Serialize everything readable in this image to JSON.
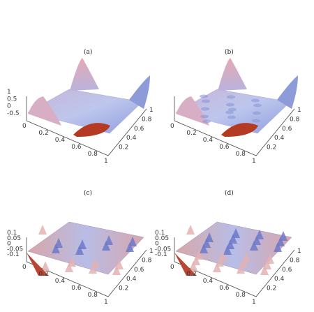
{
  "chart_data": [
    {
      "type": "surface",
      "panel_label": "(a)",
      "x_ticks": [
        "0",
        "0.2",
        "0.4",
        "0.6",
        "0.8",
        "1"
      ],
      "y_ticks": [
        "0",
        "0.2",
        "0.4",
        "0.6",
        "0.8",
        "1"
      ],
      "z_ticks": [
        "-0.5",
        "0",
        "0.5",
        "1"
      ],
      "xlim": [
        0,
        1
      ],
      "ylim": [
        0,
        1
      ],
      "zlim": [
        -0.5,
        1
      ],
      "surface": "smooth surface with tall peaks at the four corners rising to about 1, a broad flat central plateau near 0, and a dip to about -0.5 near the front edge"
    },
    {
      "type": "surface",
      "panel_label": "(b)",
      "x_ticks": [
        "0",
        "0.2",
        "0.4",
        "0.6",
        "0.8",
        "1"
      ],
      "y_ticks": [
        "0",
        "0.2",
        "0.4",
        "0.6",
        "0.8",
        "1"
      ],
      "z_ticks": [],
      "xlim": [
        0,
        1
      ],
      "ylim": [
        0,
        1
      ],
      "zlim": [
        -0.5,
        1
      ],
      "surface": "same corner-peak shape as (a) with small ripples superimposed on the central plateau"
    },
    {
      "type": "surface",
      "panel_label": "(c)",
      "x_ticks": [
        "0",
        "0.2",
        "0.4",
        "0.6",
        "0.8",
        "1"
      ],
      "y_ticks": [
        "0",
        "0.2",
        "0.4",
        "0.6",
        "0.8",
        "1"
      ],
      "z_ticks": [
        "-0.1",
        "-0.05",
        "0",
        "0.05",
        "0.1"
      ],
      "xlim": [
        0,
        1
      ],
      "ylim": [
        0,
        1
      ],
      "zlim": [
        -0.1,
        0.1
      ],
      "surface": "oscillating ridged surface with amplitude about 0.1"
    },
    {
      "type": "surface",
      "panel_label": "(d)",
      "x_ticks": [
        "0",
        "0.2",
        "0.4",
        "0.6",
        "0.8",
        "1"
      ],
      "y_ticks": [
        "0",
        "0.2",
        "0.4",
        "0.6",
        "0.8",
        "1"
      ],
      "z_ticks": [
        "-0.1",
        "-0.05",
        "0",
        "0.05",
        "0.1"
      ],
      "xlim": [
        0,
        1
      ],
      "ylim": [
        0,
        1
      ],
      "zlim": [
        -0.1,
        0.1
      ],
      "surface": "more irregular, noisy oscillating surface with amplitude about 0.1"
    }
  ]
}
